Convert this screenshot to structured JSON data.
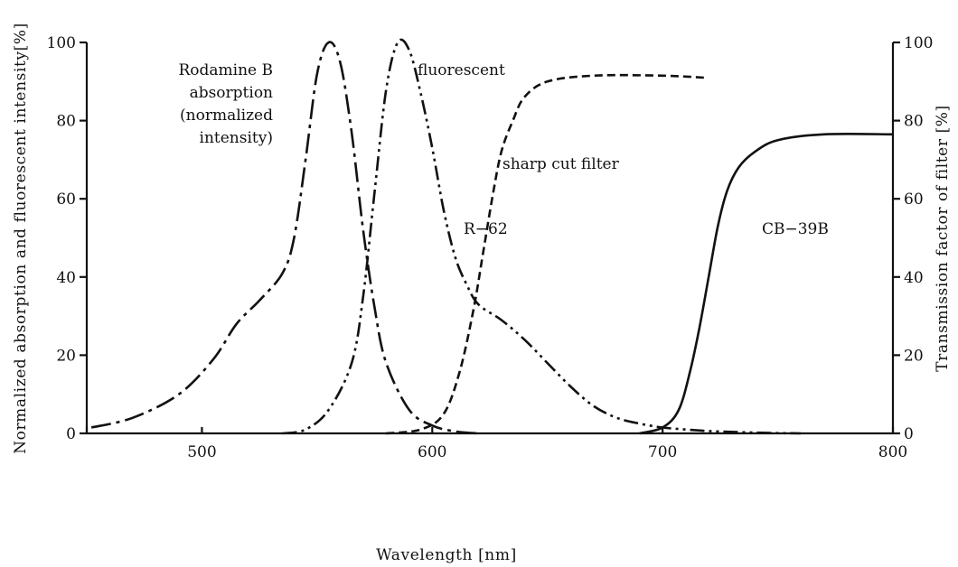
{
  "chart_data": {
    "type": "line",
    "xlabel": "Wavelength [nm]",
    "ylabel_left": "Normalized absorption and fluorescent intensity[%]",
    "ylabel_right": "Transmission factor of filter [%]",
    "xlim": [
      450,
      800
    ],
    "ylim_left": [
      0,
      100
    ],
    "ylim_right": [
      0,
      100
    ],
    "x_ticks": [
      500,
      600,
      700,
      800
    ],
    "y_ticks_left": [
      0,
      20,
      40,
      60,
      80,
      100
    ],
    "y_ticks_right": [
      0,
      20,
      40,
      60,
      80,
      100
    ],
    "grid": false,
    "annotations": [
      {
        "id": "absorption-label",
        "lines": [
          "Rodamine B",
          "absorption",
          "(normalized",
          "intensity)"
        ]
      },
      {
        "id": "fluorescent-label",
        "lines": [
          "fluorescent"
        ]
      },
      {
        "id": "filter-label",
        "lines": [
          "sharp cut filter"
        ]
      },
      {
        "id": "r62-label",
        "lines": [
          "R−62"
        ]
      },
      {
        "id": "cb39b-label",
        "lines": [
          "CB−39B"
        ]
      }
    ],
    "series": [
      {
        "key": "absorption",
        "axis": "left",
        "dash": "22 6 4 6",
        "points": [
          [
            452,
            1.5
          ],
          [
            470,
            4
          ],
          [
            490,
            10
          ],
          [
            505,
            19
          ],
          [
            515,
            28
          ],
          [
            525,
            34
          ],
          [
            535,
            41
          ],
          [
            540,
            50
          ],
          [
            545,
            70
          ],
          [
            550,
            92
          ],
          [
            555,
            100
          ],
          [
            560,
            95
          ],
          [
            565,
            77
          ],
          [
            570,
            52
          ],
          [
            575,
            32
          ],
          [
            580,
            18
          ],
          [
            590,
            6
          ],
          [
            600,
            2
          ],
          [
            610,
            0.5
          ],
          [
            620,
            0
          ]
        ]
      },
      {
        "key": "fluorescent",
        "axis": "left",
        "dash": "16 5 3 5 3 5",
        "points": [
          [
            535,
            0
          ],
          [
            545,
            1
          ],
          [
            555,
            6
          ],
          [
            565,
            18
          ],
          [
            570,
            35
          ],
          [
            575,
            62
          ],
          [
            580,
            88
          ],
          [
            585,
            100
          ],
          [
            590,
            98
          ],
          [
            595,
            87
          ],
          [
            600,
            73
          ],
          [
            605,
            57
          ],
          [
            610,
            45
          ],
          [
            615,
            38
          ],
          [
            620,
            33
          ],
          [
            630,
            29
          ],
          [
            640,
            24
          ],
          [
            650,
            18
          ],
          [
            660,
            12
          ],
          [
            670,
            7
          ],
          [
            680,
            4
          ],
          [
            690,
            2.5
          ],
          [
            700,
            1.5
          ],
          [
            710,
            1
          ],
          [
            720,
            0.6
          ],
          [
            740,
            0.2
          ],
          [
            760,
            0
          ]
        ]
      },
      {
        "key": "R-62",
        "axis": "right",
        "dash": "9 5",
        "points": [
          [
            580,
            0
          ],
          [
            595,
            1
          ],
          [
            605,
            5
          ],
          [
            612,
            16
          ],
          [
            618,
            32
          ],
          [
            622,
            46
          ],
          [
            626,
            60
          ],
          [
            630,
            72
          ],
          [
            635,
            80
          ],
          [
            640,
            86
          ],
          [
            650,
            90
          ],
          [
            670,
            91.5
          ],
          [
            700,
            91.5
          ],
          [
            718,
            91
          ]
        ]
      },
      {
        "key": "CB-39B",
        "axis": "right",
        "dash": "none",
        "points": [
          [
            690,
            0
          ],
          [
            700,
            1.5
          ],
          [
            707,
            6
          ],
          [
            712,
            16
          ],
          [
            716,
            27
          ],
          [
            720,
            40
          ],
          [
            724,
            53
          ],
          [
            728,
            62
          ],
          [
            733,
            68
          ],
          [
            740,
            72
          ],
          [
            750,
            75
          ],
          [
            770,
            76.5
          ],
          [
            800,
            76.5
          ]
        ]
      }
    ]
  }
}
